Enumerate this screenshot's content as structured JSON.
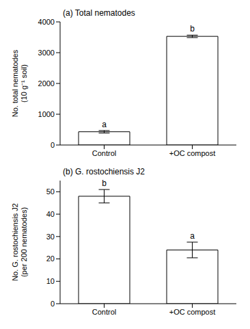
{
  "chart_data": [
    {
      "type": "bar",
      "title": "(a) Total nematodes",
      "ylabel": "No. total nematodes (10 g⁻¹ soil)",
      "categories": [
        "Control",
        "+OC compost"
      ],
      "values": [
        430,
        3530
      ],
      "errors": [
        40,
        40
      ],
      "annotations": [
        "a",
        "b"
      ],
      "color": "#ffffff",
      "ylim": [
        0,
        4000
      ],
      "yticks": [
        0,
        1000,
        2000,
        3000,
        4000
      ],
      "grid": false
    },
    {
      "type": "bar",
      "title": "(b) G. rostochiensis J2",
      "ylabel": "No. G. rostochiensis J2 (per 200 nematodes)",
      "categories": [
        "Control",
        "+OC compost"
      ],
      "values": [
        48,
        24
      ],
      "errors": [
        3,
        3.5
      ],
      "annotations": [
        "b",
        "a"
      ],
      "color": "#ffffff",
      "ylim": [
        0,
        55
      ],
      "yticks": [
        0,
        10,
        20,
        30,
        40,
        50
      ],
      "grid": false
    }
  ]
}
